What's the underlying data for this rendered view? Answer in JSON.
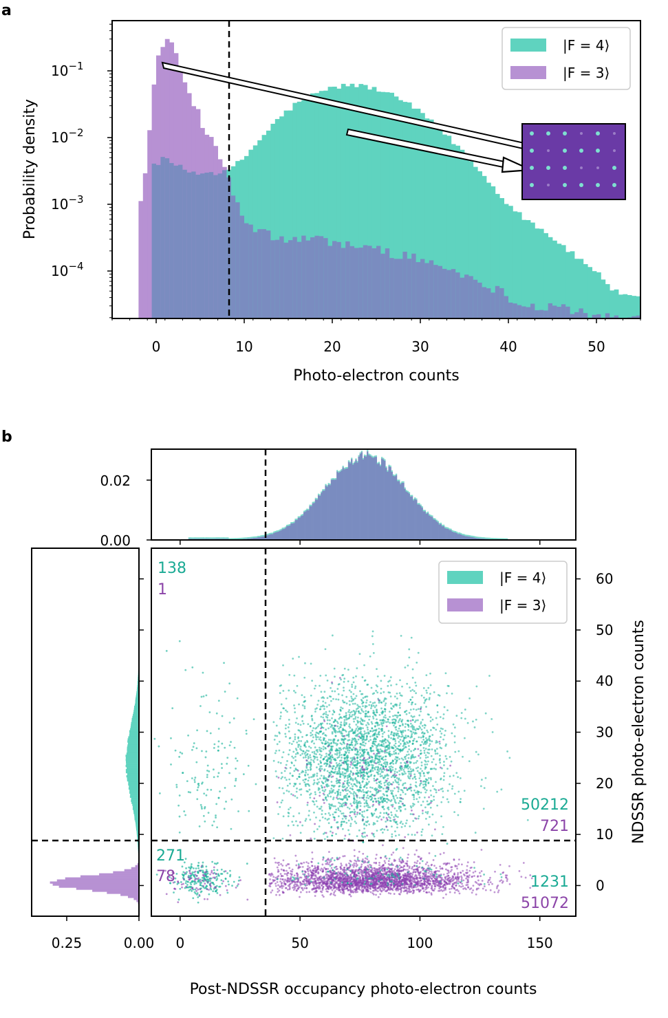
{
  "colors": {
    "f4": "#5fd3bf",
    "f3": "#b791d3",
    "overlap": "#7a8cc0",
    "scatter_f4": "#17b39a",
    "scatter_f3": "#8c3fb0",
    "inset_bg": "#6a3aa6"
  },
  "panel_a": {
    "letter": "a",
    "xlabel": "Photo-electron counts",
    "ylabel": "Probability density",
    "xticks": [
      "0",
      "10",
      "20",
      "30",
      "40",
      "50"
    ],
    "yticks": [
      "10^-1",
      "10^-2",
      "10^-3",
      "10^-4"
    ],
    "ytick_base": "10",
    "ytick_exps": [
      "−1",
      "−2",
      "−3",
      "−4"
    ],
    "legend": [
      "|F = 4⟩",
      "|F = 3⟩"
    ]
  },
  "panel_b": {
    "letter": "b",
    "xlabel": "Post-NDSSR occupancy photo-electron counts",
    "ylabel": "NDSSR photo-electron counts",
    "top_yticks": [
      "0.02",
      "0.00"
    ],
    "left_xticks": [
      "0.25",
      "0.00"
    ],
    "main_xticks": [
      "0",
      "50",
      "100",
      "150"
    ],
    "main_yticks": [
      "0",
      "10",
      "20",
      "30",
      "40",
      "50",
      "60"
    ],
    "legend": [
      "|F = 4⟩",
      "|F = 3⟩"
    ],
    "counts": {
      "top_left": {
        "f4": "138",
        "f3": "1"
      },
      "top_right": {
        "f4": "50212",
        "f3": "721"
      },
      "bottom_left": {
        "f4": "271",
        "f3": "78"
      },
      "bottom_right": {
        "f4": "1231",
        "f3": "51072"
      }
    }
  },
  "chart_data": [
    {
      "type": "histogram",
      "panel": "a",
      "xlabel": "Photo-electron counts",
      "ylabel": "Probability density",
      "yscale": "log",
      "xlim": [
        -5,
        55
      ],
      "ylim": [
        2e-05,
        0.5
      ],
      "threshold_x": 8.3,
      "series": [
        {
          "name": "|F = 4⟩",
          "bin_centers": [
            0,
            1,
            2,
            4,
            6,
            8,
            10,
            12,
            14,
            16,
            18,
            20,
            22,
            24,
            26,
            28,
            30,
            32,
            34,
            36,
            38,
            40,
            42,
            44,
            46,
            48,
            50,
            52,
            54
          ],
          "density": [
            0.004,
            0.005,
            0.004,
            0.003,
            0.003,
            0.003,
            0.005,
            0.01,
            0.02,
            0.033,
            0.045,
            0.056,
            0.062,
            0.058,
            0.048,
            0.036,
            0.024,
            0.014,
            0.008,
            0.004,
            0.002,
            0.001,
            0.0006,
            0.0004,
            0.00025,
            0.00015,
            0.0001,
            5e-05,
            4e-05
          ]
        },
        {
          "name": "|F = 3⟩",
          "bin_centers": [
            -2,
            -1,
            0,
            1,
            2,
            3,
            4,
            5,
            6,
            7,
            8,
            10,
            14,
            18,
            22,
            26,
            30,
            34,
            38,
            42,
            46,
            50
          ],
          "density": [
            0.0006,
            0.006,
            0.12,
            0.35,
            0.2,
            0.08,
            0.04,
            0.02,
            0.01,
            0.006,
            0.003,
            0.0005,
            0.0003,
            0.0003,
            0.00025,
            0.0002,
            0.00015,
            0.0001,
            6e-05,
            3e-05,
            3e-05,
            2e-05
          ]
        }
      ]
    },
    {
      "type": "scatter",
      "panel": "b",
      "xlabel": "Post-NDSSR occupancy photo-electron counts",
      "ylabel": "NDSSR photo-electron counts",
      "xlim": [
        -12,
        165
      ],
      "ylim": [
        -6,
        66
      ],
      "threshold_x": 36,
      "threshold_y": 8.3,
      "series": [
        {
          "name": "|F = 4⟩",
          "main_cluster_center": [
            77,
            25
          ],
          "main_cluster_spread": [
            18,
            7
          ],
          "secondary_cluster_center": [
            8,
            1
          ]
        },
        {
          "name": "|F = 3⟩",
          "main_cluster_center": [
            80,
            1
          ],
          "main_cluster_spread": [
            22,
            2
          ],
          "secondary_cluster_center": [
            8,
            1
          ]
        }
      ],
      "quadrant_counts": {
        "top_left": {
          "|F = 4⟩": 138,
          "|F = 3⟩": 1
        },
        "top_right": {
          "|F = 4⟩": 50212,
          "|F = 3⟩": 721
        },
        "bottom_left": {
          "|F = 4⟩": 271,
          "|F = 3⟩": 78
        },
        "bottom_right": {
          "|F = 4⟩": 1231,
          "|F = 3⟩": 51072
        }
      }
    },
    {
      "type": "histogram",
      "panel": "b-top",
      "ylim": [
        0,
        0.029
      ],
      "peak_x": 77,
      "peak_density": 0.028
    },
    {
      "type": "histogram",
      "panel": "b-left",
      "orientation": "horizontal",
      "xlim": [
        0.35,
        0
      ],
      "f3_peak_density": 0.3,
      "f4_peak_density": 0.04
    }
  ]
}
